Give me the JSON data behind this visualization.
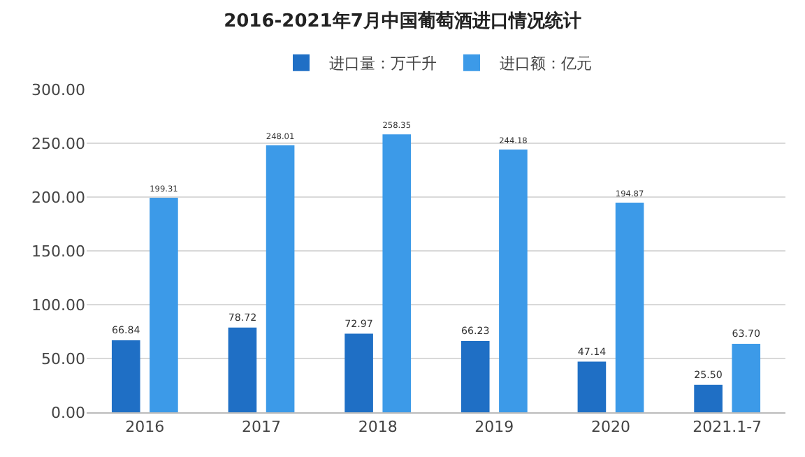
{
  "chart_data": {
    "type": "bar",
    "title": "2016-2021年7月中国葡萄酒进口情况统计",
    "categories": [
      "2016",
      "2017",
      "2018",
      "2019",
      "2020",
      "2021.1-7"
    ],
    "series": [
      {
        "name": "进口量：万千升",
        "color": "#1f6fc5",
        "values": [
          66.84,
          78.72,
          72.97,
          66.23,
          47.14,
          25.5
        ],
        "value_labels": [
          "66.84",
          "78.72",
          "72.97",
          "66.23",
          "47.14",
          "25.50"
        ]
      },
      {
        "name": "进口额：亿元",
        "color": "#3c9ae8",
        "values": [
          199.31,
          248.01,
          258.35,
          244.18,
          194.87,
          63.7
        ],
        "value_labels": [
          "199.31",
          "248.01",
          "258.35",
          "244.18",
          "194.87",
          "63.70"
        ]
      }
    ],
    "ylim": [
      0,
      300
    ],
    "yticks": [
      {
        "value": 0,
        "label": "0.00"
      },
      {
        "value": 50,
        "label": "50.00"
      },
      {
        "value": 100,
        "label": "100.00"
      },
      {
        "value": 150,
        "label": "150.00"
      },
      {
        "value": 200,
        "label": "200.00"
      },
      {
        "value": 250,
        "label": "250.00"
      },
      {
        "value": 300,
        "label": "300.00"
      }
    ],
    "grid": "y",
    "legend": "top"
  }
}
